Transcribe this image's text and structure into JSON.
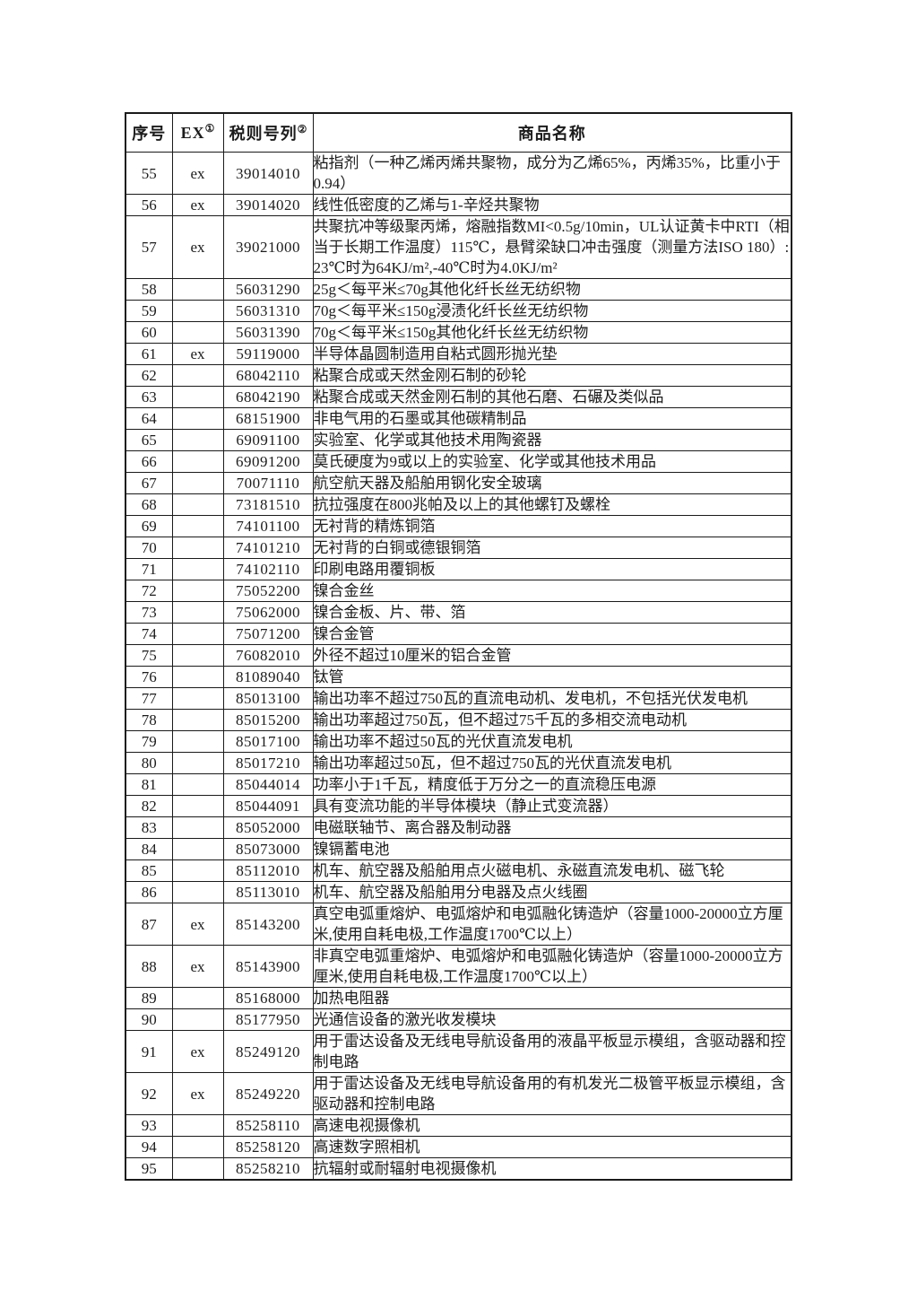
{
  "table": {
    "headers": [
      {
        "label": "序号",
        "sup": ""
      },
      {
        "label": "EX",
        "sup": "①"
      },
      {
        "label": "税则号列",
        "sup": "②"
      },
      {
        "label": "商品名称",
        "sup": ""
      }
    ],
    "rows": [
      {
        "no": "55",
        "ex": "ex",
        "code": "39014010",
        "name": "粘指剂（一种乙烯丙烯共聚物，成分为乙烯65%，丙烯35%，比重小于0.94）"
      },
      {
        "no": "56",
        "ex": "ex",
        "code": "39014020",
        "name": "线性低密度的乙烯与1-辛烃共聚物"
      },
      {
        "no": "57",
        "ex": "ex",
        "code": "39021000",
        "name": "共聚抗冲等级聚丙烯，熔融指数MI<0.5g/10min，UL认证黄卡中RTI（相当于长期工作温度）115℃，悬臂梁缺口冲击强度（测量方法ISO 180）: 23℃时为64KJ/m²,-40℃时为4.0KJ/m²"
      },
      {
        "no": "58",
        "ex": "",
        "code": "56031290",
        "name": "25g＜每平米≤70g其他化纤长丝无纺织物"
      },
      {
        "no": "59",
        "ex": "",
        "code": "56031310",
        "name": "70g＜每平米≤150g浸渍化纤长丝无纺织物"
      },
      {
        "no": "60",
        "ex": "",
        "code": "56031390",
        "name": "70g＜每平米≤150g其他化纤长丝无纺织物"
      },
      {
        "no": "61",
        "ex": "ex",
        "code": "59119000",
        "name": "半导体晶圆制造用自粘式圆形抛光垫"
      },
      {
        "no": "62",
        "ex": "",
        "code": "68042110",
        "name": "粘聚合成或天然金刚石制的砂轮"
      },
      {
        "no": "63",
        "ex": "",
        "code": "68042190",
        "name": "粘聚合成或天然金刚石制的其他石磨、石碾及类似品"
      },
      {
        "no": "64",
        "ex": "",
        "code": "68151900",
        "name": "非电气用的石墨或其他碳精制品"
      },
      {
        "no": "65",
        "ex": "",
        "code": "69091100",
        "name": "实验室、化学或其他技术用陶瓷器"
      },
      {
        "no": "66",
        "ex": "",
        "code": "69091200",
        "name": "莫氏硬度为9或以上的实验室、化学或其他技术用品"
      },
      {
        "no": "67",
        "ex": "",
        "code": "70071110",
        "name": "航空航天器及船舶用钢化安全玻璃"
      },
      {
        "no": "68",
        "ex": "",
        "code": "73181510",
        "name": "抗拉强度在800兆帕及以上的其他螺钉及螺栓"
      },
      {
        "no": "69",
        "ex": "",
        "code": "74101100",
        "name": "无衬背的精炼铜箔"
      },
      {
        "no": "70",
        "ex": "",
        "code": "74101210",
        "name": "无衬背的白铜或德银铜箔"
      },
      {
        "no": "71",
        "ex": "",
        "code": "74102110",
        "name": "印刷电路用覆铜板"
      },
      {
        "no": "72",
        "ex": "",
        "code": "75052200",
        "name": "镍合金丝"
      },
      {
        "no": "73",
        "ex": "",
        "code": "75062000",
        "name": "镍合金板、片、带、箔"
      },
      {
        "no": "74",
        "ex": "",
        "code": "75071200",
        "name": "镍合金管"
      },
      {
        "no": "75",
        "ex": "",
        "code": "76082010",
        "name": "外径不超过10厘米的铝合金管"
      },
      {
        "no": "76",
        "ex": "",
        "code": "81089040",
        "name": "钛管"
      },
      {
        "no": "77",
        "ex": "",
        "code": "85013100",
        "name": "输出功率不超过750瓦的直流电动机、发电机，不包括光伏发电机"
      },
      {
        "no": "78",
        "ex": "",
        "code": "85015200",
        "name": "输出功率超过750瓦，但不超过75千瓦的多相交流电动机"
      },
      {
        "no": "79",
        "ex": "",
        "code": "85017100",
        "name": "输出功率不超过50瓦的光伏直流发电机"
      },
      {
        "no": "80",
        "ex": "",
        "code": "85017210",
        "name": "输出功率超过50瓦，但不超过750瓦的光伏直流发电机"
      },
      {
        "no": "81",
        "ex": "",
        "code": "85044014",
        "name": "功率小于1千瓦，精度低于万分之一的直流稳压电源"
      },
      {
        "no": "82",
        "ex": "",
        "code": "85044091",
        "name": "具有变流功能的半导体模块（静止式变流器）"
      },
      {
        "no": "83",
        "ex": "",
        "code": "85052000",
        "name": "电磁联轴节、离合器及制动器"
      },
      {
        "no": "84",
        "ex": "",
        "code": "85073000",
        "name": "镍镉蓄电池"
      },
      {
        "no": "85",
        "ex": "",
        "code": "85112010",
        "name": "机车、航空器及船舶用点火磁电机、永磁直流发电机、磁飞轮"
      },
      {
        "no": "86",
        "ex": "",
        "code": "85113010",
        "name": "机车、航空器及船舶用分电器及点火线圈"
      },
      {
        "no": "87",
        "ex": "ex",
        "code": "85143200",
        "name": "真空电弧重熔炉、电弧熔炉和电弧融化铸造炉（容量1000-20000立方厘米,使用自耗电极,工作温度1700℃以上）"
      },
      {
        "no": "88",
        "ex": "ex",
        "code": "85143900",
        "name": "非真空电弧重熔炉、电弧熔炉和电弧融化铸造炉（容量1000-20000立方厘米,使用自耗电极,工作温度1700℃以上）"
      },
      {
        "no": "89",
        "ex": "",
        "code": "85168000",
        "name": "加热电阻器"
      },
      {
        "no": "90",
        "ex": "",
        "code": "85177950",
        "name": "光通信设备的激光收发模块"
      },
      {
        "no": "91",
        "ex": "ex",
        "code": "85249120",
        "name": "用于雷达设备及无线电导航设备用的液晶平板显示模组，含驱动器和控制电路"
      },
      {
        "no": "92",
        "ex": "ex",
        "code": "85249220",
        "name": "用于雷达设备及无线电导航设备用的有机发光二极管平板显示模组，含驱动器和控制电路"
      },
      {
        "no": "93",
        "ex": "",
        "code": "85258110",
        "name": "高速电视摄像机"
      },
      {
        "no": "94",
        "ex": "",
        "code": "85258120",
        "name": "高速数字照相机"
      },
      {
        "no": "95",
        "ex": "",
        "code": "85258210",
        "name": "抗辐射或耐辐射电视摄像机"
      }
    ]
  }
}
